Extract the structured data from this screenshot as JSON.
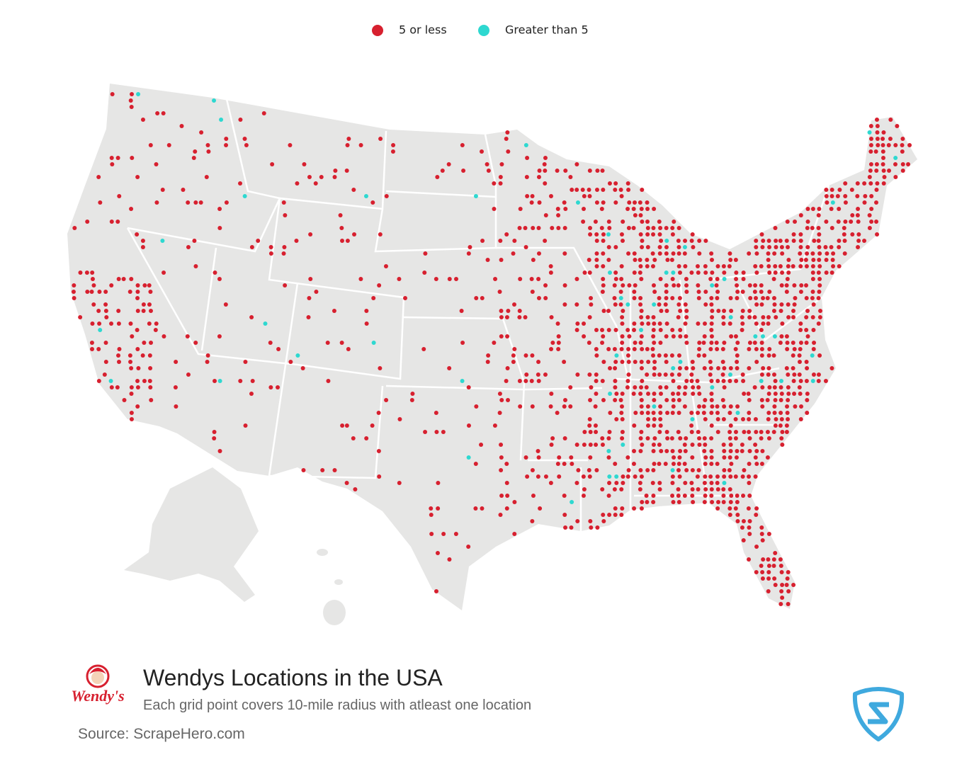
{
  "legend": {
    "items": [
      {
        "label": "5 or less",
        "color": "#d7202f"
      },
      {
        "label": "Greater than 5",
        "color": "#2ed8d0"
      }
    ]
  },
  "footer": {
    "title": "Wendys Locations in the USA",
    "subtitle": "Each grid point covers 10-mile radius with atleast one location",
    "source": "Source: ScrapeHero.com"
  },
  "logo": {
    "text": "Wendy's"
  }
}
